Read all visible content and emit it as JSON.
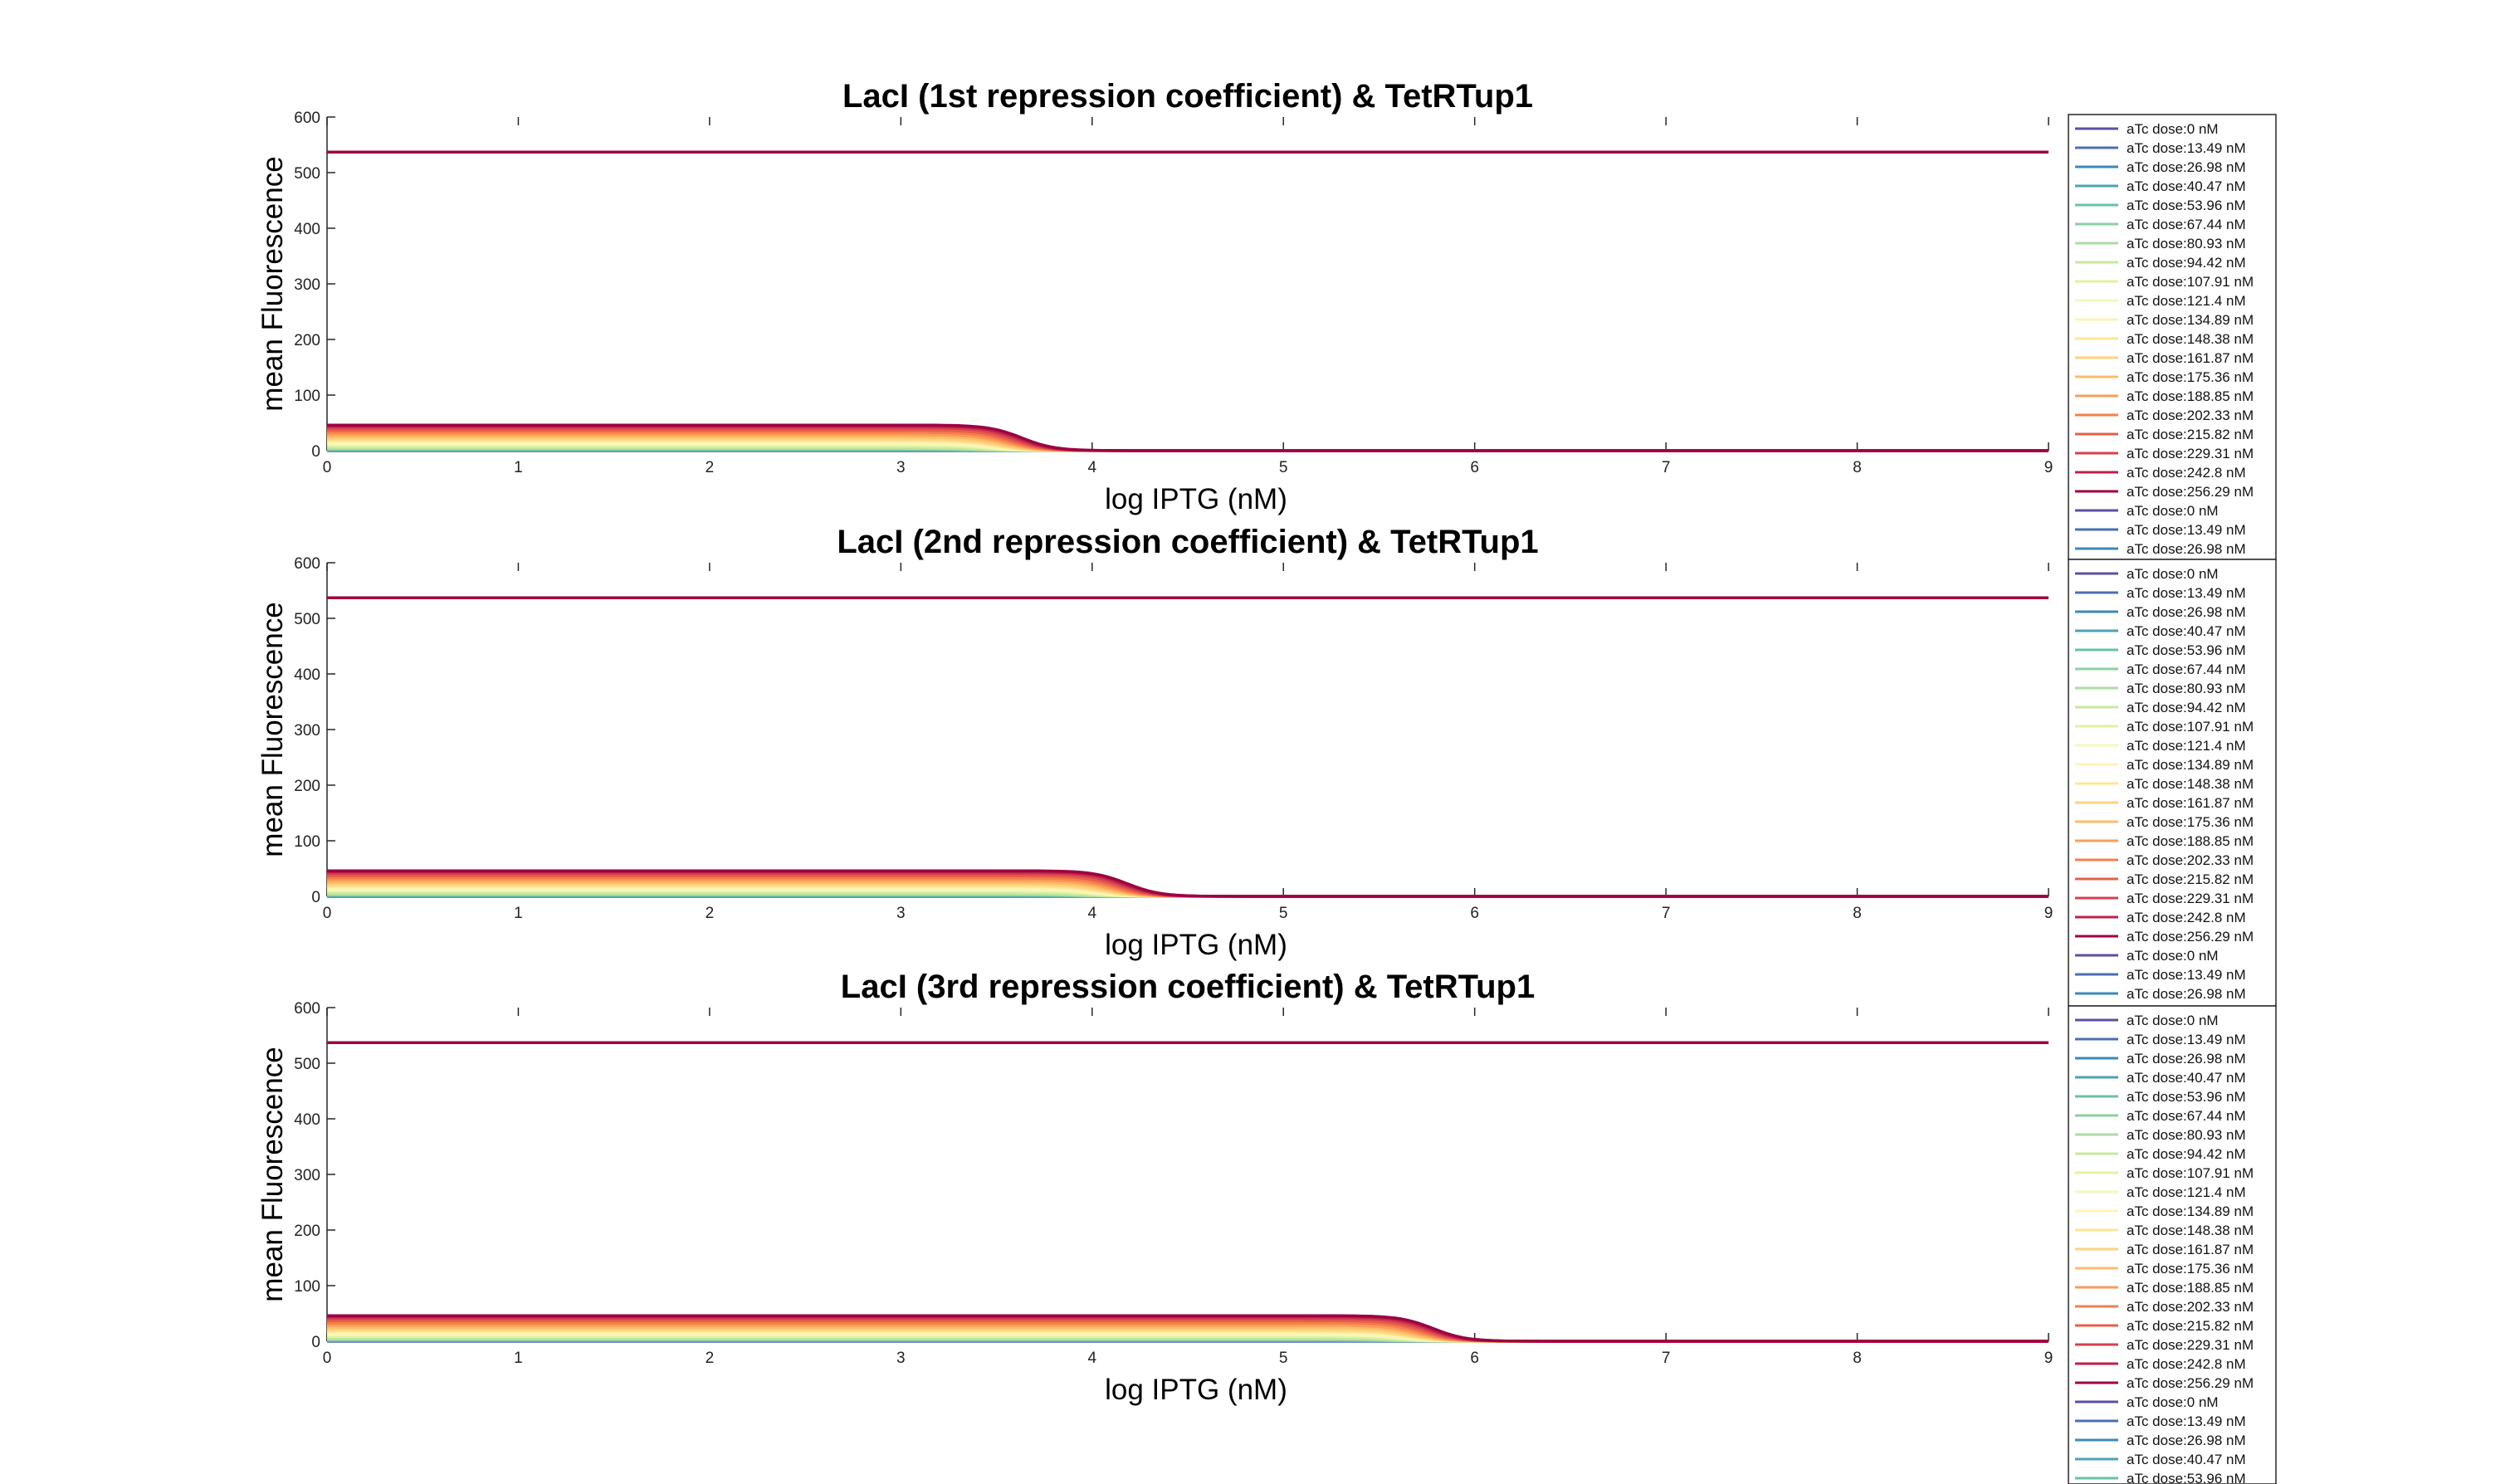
{
  "chart_data": [
    {
      "type": "line",
      "title": "LacI (1st repression coefficient) & TetRTup1",
      "xlabel": "log IPTG (nM)",
      "ylabel": "mean Fluorescence",
      "xlim": [
        0,
        9
      ],
      "ylim": [
        0,
        600
      ],
      "x_ticks": [
        "0",
        "1",
        "2",
        "3",
        "4",
        "5",
        "6",
        "7",
        "8",
        "9"
      ],
      "y_ticks": [
        "0",
        "100",
        "200",
        "300",
        "400",
        "500",
        "600"
      ],
      "grid": false,
      "legend_position": "outside-right",
      "legend_entries": [
        "aTc dose:0 nM",
        "aTc dose:13.49 nM",
        "aTc dose:26.98 nM",
        "aTc dose:40.47 nM",
        "aTc dose:53.96 nM",
        "aTc dose:67.44 nM",
        "aTc dose:80.93 nM",
        "aTc dose:94.42 nM",
        "aTc dose:107.91 nM",
        "aTc dose:121.4 nM",
        "aTc dose:134.89 nM",
        "aTc dose:148.38 nM",
        "aTc dose:161.87 nM",
        "aTc dose:175.36 nM",
        "aTc dose:188.85 nM",
        "aTc dose:202.33 nM",
        "aTc dose:215.82 nM",
        "aTc dose:229.31 nM",
        "aTc dose:242.8 nM",
        "aTc dose:256.29 nM",
        "aTc dose:0 nM",
        "aTc dose:13.49 nM",
        "aTc dose:26.98 nM"
      ],
      "transition_x": 3.3,
      "series": [
        {
          "name": "aTc dose:0 nM",
          "color": "#5e4fa2",
          "plateau": 0
        },
        {
          "name": "aTc dose:13.49 nM",
          "color": "#4a6fb0",
          "plateau": 0.5
        },
        {
          "name": "aTc dose:26.98 nM",
          "color": "#3a8ab8",
          "plateau": 1
        },
        {
          "name": "aTc dose:40.47 nM",
          "color": "#4da2b2",
          "plateau": 1.5
        },
        {
          "name": "aTc dose:53.96 nM",
          "color": "#66c2a5",
          "plateau": 2
        },
        {
          "name": "aTc dose:67.44 nM",
          "color": "#8ccfa4",
          "plateau": 3
        },
        {
          "name": "aTc dose:80.93 nM",
          "color": "#abdda4",
          "plateau": 4
        },
        {
          "name": "aTc dose:94.42 nM",
          "color": "#c7e89e",
          "plateau": 6
        },
        {
          "name": "aTc dose:107.91 nM",
          "color": "#e0f3a1",
          "plateau": 9
        },
        {
          "name": "aTc dose:121.4 nM",
          "color": "#f1f9ba",
          "plateau": 12
        },
        {
          "name": "aTc dose:134.89 nM",
          "color": "#fff3b4",
          "plateau": 15
        },
        {
          "name": "aTc dose:148.38 nM",
          "color": "#fee593",
          "plateau": 18
        },
        {
          "name": "aTc dose:161.87 nM",
          "color": "#fdd37b",
          "plateau": 21
        },
        {
          "name": "aTc dose:175.36 nM",
          "color": "#fdbc69",
          "plateau": 25
        },
        {
          "name": "aTc dose:188.85 nM",
          "color": "#f99e57",
          "plateau": 29
        },
        {
          "name": "aTc dose:202.33 nM",
          "color": "#f47f4c",
          "plateau": 33
        },
        {
          "name": "aTc dose:215.82 nM",
          "color": "#e65f48",
          "plateau": 37
        },
        {
          "name": "aTc dose:229.31 nM",
          "color": "#d6404e",
          "plateau": 41
        },
        {
          "name": "aTc dose:242.8 nM",
          "color": "#bd2148",
          "plateau": 44
        },
        {
          "name": "aTc dose:256.29 nM",
          "color": "#9e0142",
          "plateau": 46
        },
        {
          "name": "aTc dose:256.29 nM (constant)",
          "color": "#9e0142",
          "constant": 537
        }
      ]
    },
    {
      "type": "line",
      "title": "LacI (2nd repression coefficient) & TetRTup1",
      "xlabel": "log IPTG (nM)",
      "ylabel": "mean Fluorescence",
      "xlim": [
        0,
        9
      ],
      "ylim": [
        0,
        600
      ],
      "x_ticks": [
        "0",
        "1",
        "2",
        "3",
        "4",
        "5",
        "6",
        "7",
        "8",
        "9"
      ],
      "y_ticks": [
        "0",
        "100",
        "200",
        "300",
        "400",
        "500",
        "600"
      ],
      "grid": false,
      "legend_position": "outside-right",
      "legend_entries": [
        "aTc dose:0 nM",
        "aTc dose:13.49 nM",
        "aTc dose:26.98 nM",
        "aTc dose:40.47 nM",
        "aTc dose:53.96 nM",
        "aTc dose:67.44 nM",
        "aTc dose:80.93 nM",
        "aTc dose:94.42 nM",
        "aTc dose:107.91 nM",
        "aTc dose:121.4 nM",
        "aTc dose:134.89 nM",
        "aTc dose:148.38 nM",
        "aTc dose:161.87 nM",
        "aTc dose:175.36 nM",
        "aTc dose:188.85 nM",
        "aTc dose:202.33 nM",
        "aTc dose:215.82 nM",
        "aTc dose:229.31 nM",
        "aTc dose:242.8 nM",
        "aTc dose:256.29 nM",
        "aTc dose:0 nM",
        "aTc dose:13.49 nM",
        "aTc dose:26.98 nM"
      ],
      "transition_x": 3.85,
      "series": [
        {
          "name": "aTc dose:0 nM",
          "color": "#5e4fa2",
          "plateau": 0
        },
        {
          "name": "aTc dose:13.49 nM",
          "color": "#4a6fb0",
          "plateau": 0.5
        },
        {
          "name": "aTc dose:26.98 nM",
          "color": "#3a8ab8",
          "plateau": 1
        },
        {
          "name": "aTc dose:40.47 nM",
          "color": "#4da2b2",
          "plateau": 1.5
        },
        {
          "name": "aTc dose:53.96 nM",
          "color": "#66c2a5",
          "plateau": 2
        },
        {
          "name": "aTc dose:67.44 nM",
          "color": "#8ccfa4",
          "plateau": 3
        },
        {
          "name": "aTc dose:80.93 nM",
          "color": "#abdda4",
          "plateau": 4
        },
        {
          "name": "aTc dose:94.42 nM",
          "color": "#c7e89e",
          "plateau": 6
        },
        {
          "name": "aTc dose:107.91 nM",
          "color": "#e0f3a1",
          "plateau": 9
        },
        {
          "name": "aTc dose:121.4 nM",
          "color": "#f1f9ba",
          "plateau": 12
        },
        {
          "name": "aTc dose:134.89 nM",
          "color": "#fff3b4",
          "plateau": 15
        },
        {
          "name": "aTc dose:148.38 nM",
          "color": "#fee593",
          "plateau": 18
        },
        {
          "name": "aTc dose:161.87 nM",
          "color": "#fdd37b",
          "plateau": 21
        },
        {
          "name": "aTc dose:175.36 nM",
          "color": "#fdbc69",
          "plateau": 25
        },
        {
          "name": "aTc dose:188.85 nM",
          "color": "#f99e57",
          "plateau": 29
        },
        {
          "name": "aTc dose:202.33 nM",
          "color": "#f47f4c",
          "plateau": 33
        },
        {
          "name": "aTc dose:215.82 nM",
          "color": "#e65f48",
          "plateau": 37
        },
        {
          "name": "aTc dose:229.31 nM",
          "color": "#d6404e",
          "plateau": 41
        },
        {
          "name": "aTc dose:242.8 nM",
          "color": "#bd2148",
          "plateau": 44
        },
        {
          "name": "aTc dose:256.29 nM",
          "color": "#9e0142",
          "plateau": 46
        },
        {
          "name": "aTc dose:256.29 nM (constant)",
          "color": "#9e0142",
          "constant": 537
        }
      ]
    },
    {
      "type": "line",
      "title": "LacI (3rd repression coefficient) & TetRTup1",
      "xlabel": "log IPTG (nM)",
      "ylabel": "mean Fluorescence",
      "xlim": [
        0,
        9
      ],
      "ylim": [
        0,
        600
      ],
      "x_ticks": [
        "0",
        "1",
        "2",
        "3",
        "4",
        "5",
        "6",
        "7",
        "8",
        "9"
      ],
      "y_ticks": [
        "0",
        "100",
        "200",
        "300",
        "400",
        "500",
        "600"
      ],
      "grid": false,
      "legend_position": "outside-right",
      "legend_entries": [
        "aTc dose:0 nM",
        "aTc dose:13.49 nM",
        "aTc dose:26.98 nM",
        "aTc dose:40.47 nM",
        "aTc dose:53.96 nM",
        "aTc dose:67.44 nM",
        "aTc dose:80.93 nM",
        "aTc dose:94.42 nM",
        "aTc dose:107.91 nM",
        "aTc dose:121.4 nM",
        "aTc dose:134.89 nM",
        "aTc dose:148.38 nM",
        "aTc dose:161.87 nM",
        "aTc dose:175.36 nM",
        "aTc dose:188.85 nM",
        "aTc dose:202.33 nM",
        "aTc dose:215.82 nM",
        "aTc dose:229.31 nM",
        "aTc dose:242.8 nM",
        "aTc dose:256.29 nM",
        "aTc dose:0 nM",
        "aTc dose:13.49 nM",
        "aTc dose:26.98 nM",
        "aTc dose:40.47 nM",
        "aTc dose:53.96 nM"
      ],
      "transition_x": 5.45,
      "series": [
        {
          "name": "aTc dose:0 nM",
          "color": "#5e4fa2",
          "plateau": 0
        },
        {
          "name": "aTc dose:13.49 nM",
          "color": "#4a6fb0",
          "plateau": 0.5
        },
        {
          "name": "aTc dose:26.98 nM",
          "color": "#3a8ab8",
          "plateau": 1
        },
        {
          "name": "aTc dose:40.47 nM",
          "color": "#4da2b2",
          "plateau": 1.5
        },
        {
          "name": "aTc dose:53.96 nM",
          "color": "#66c2a5",
          "plateau": 2
        },
        {
          "name": "aTc dose:67.44 nM",
          "color": "#8ccfa4",
          "plateau": 3
        },
        {
          "name": "aTc dose:80.93 nM",
          "color": "#abdda4",
          "plateau": 4
        },
        {
          "name": "aTc dose:94.42 nM",
          "color": "#c7e89e",
          "plateau": 6
        },
        {
          "name": "aTc dose:107.91 nM",
          "color": "#e0f3a1",
          "plateau": 9
        },
        {
          "name": "aTc dose:121.4 nM",
          "color": "#f1f9ba",
          "plateau": 12
        },
        {
          "name": "aTc dose:134.89 nM",
          "color": "#fff3b4",
          "plateau": 15
        },
        {
          "name": "aTc dose:148.38 nM",
          "color": "#fee593",
          "plateau": 18
        },
        {
          "name": "aTc dose:161.87 nM",
          "color": "#fdd37b",
          "plateau": 21
        },
        {
          "name": "aTc dose:175.36 nM",
          "color": "#fdbc69",
          "plateau": 25
        },
        {
          "name": "aTc dose:188.85 nM",
          "color": "#f99e57",
          "plateau": 29
        },
        {
          "name": "aTc dose:202.33 nM",
          "color": "#f47f4c",
          "plateau": 33
        },
        {
          "name": "aTc dose:215.82 nM",
          "color": "#e65f48",
          "plateau": 37
        },
        {
          "name": "aTc dose:229.31 nM",
          "color": "#d6404e",
          "plateau": 41
        },
        {
          "name": "aTc dose:242.8 nM",
          "color": "#bd2148",
          "plateau": 44
        },
        {
          "name": "aTc dose:256.29 nM",
          "color": "#9e0142",
          "plateau": 46
        },
        {
          "name": "aTc dose:256.29 nM (constant)",
          "color": "#9e0142",
          "constant": 537
        }
      ]
    }
  ]
}
